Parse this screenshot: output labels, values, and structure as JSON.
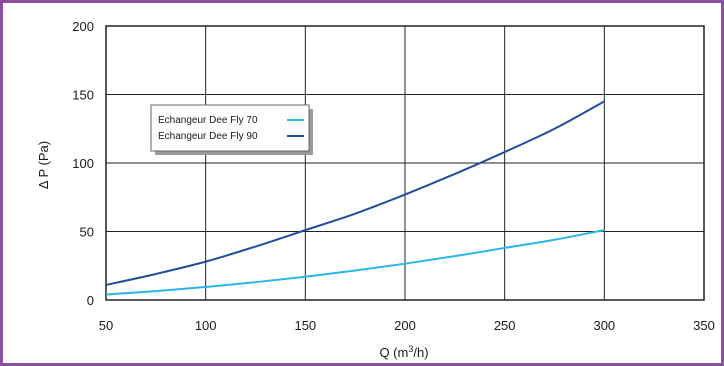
{
  "chart_data": {
    "type": "line",
    "xlabel": "Q (m³/h)",
    "ylabel": "Δ P (Pa)",
    "xlim": [
      50,
      350
    ],
    "ylim": [
      0,
      200
    ],
    "x_ticks": [
      50,
      100,
      150,
      200,
      250,
      300,
      350
    ],
    "y_ticks": [
      0,
      50,
      100,
      150,
      200
    ],
    "grid": true,
    "legend_position": "upper-left",
    "x": [
      50,
      75,
      100,
      125,
      150,
      175,
      200,
      225,
      250,
      275,
      300
    ],
    "series": [
      {
        "name": "Echangeur Dee Fly 70",
        "color": "#29b6e8",
        "values": [
          4,
          6.5,
          9.5,
          13,
          17,
          21.5,
          26.5,
          32,
          38,
          44,
          51
        ]
      },
      {
        "name": "Echangeur Dee Fly 90",
        "color": "#1f4e9a",
        "values": [
          11,
          19,
          28,
          39,
          51,
          63,
          77,
          92,
          108,
          125,
          145
        ]
      }
    ]
  },
  "colors": {
    "frame": "#8a4f9e",
    "grid": "#222222",
    "legend_bg": "#ffffff"
  }
}
